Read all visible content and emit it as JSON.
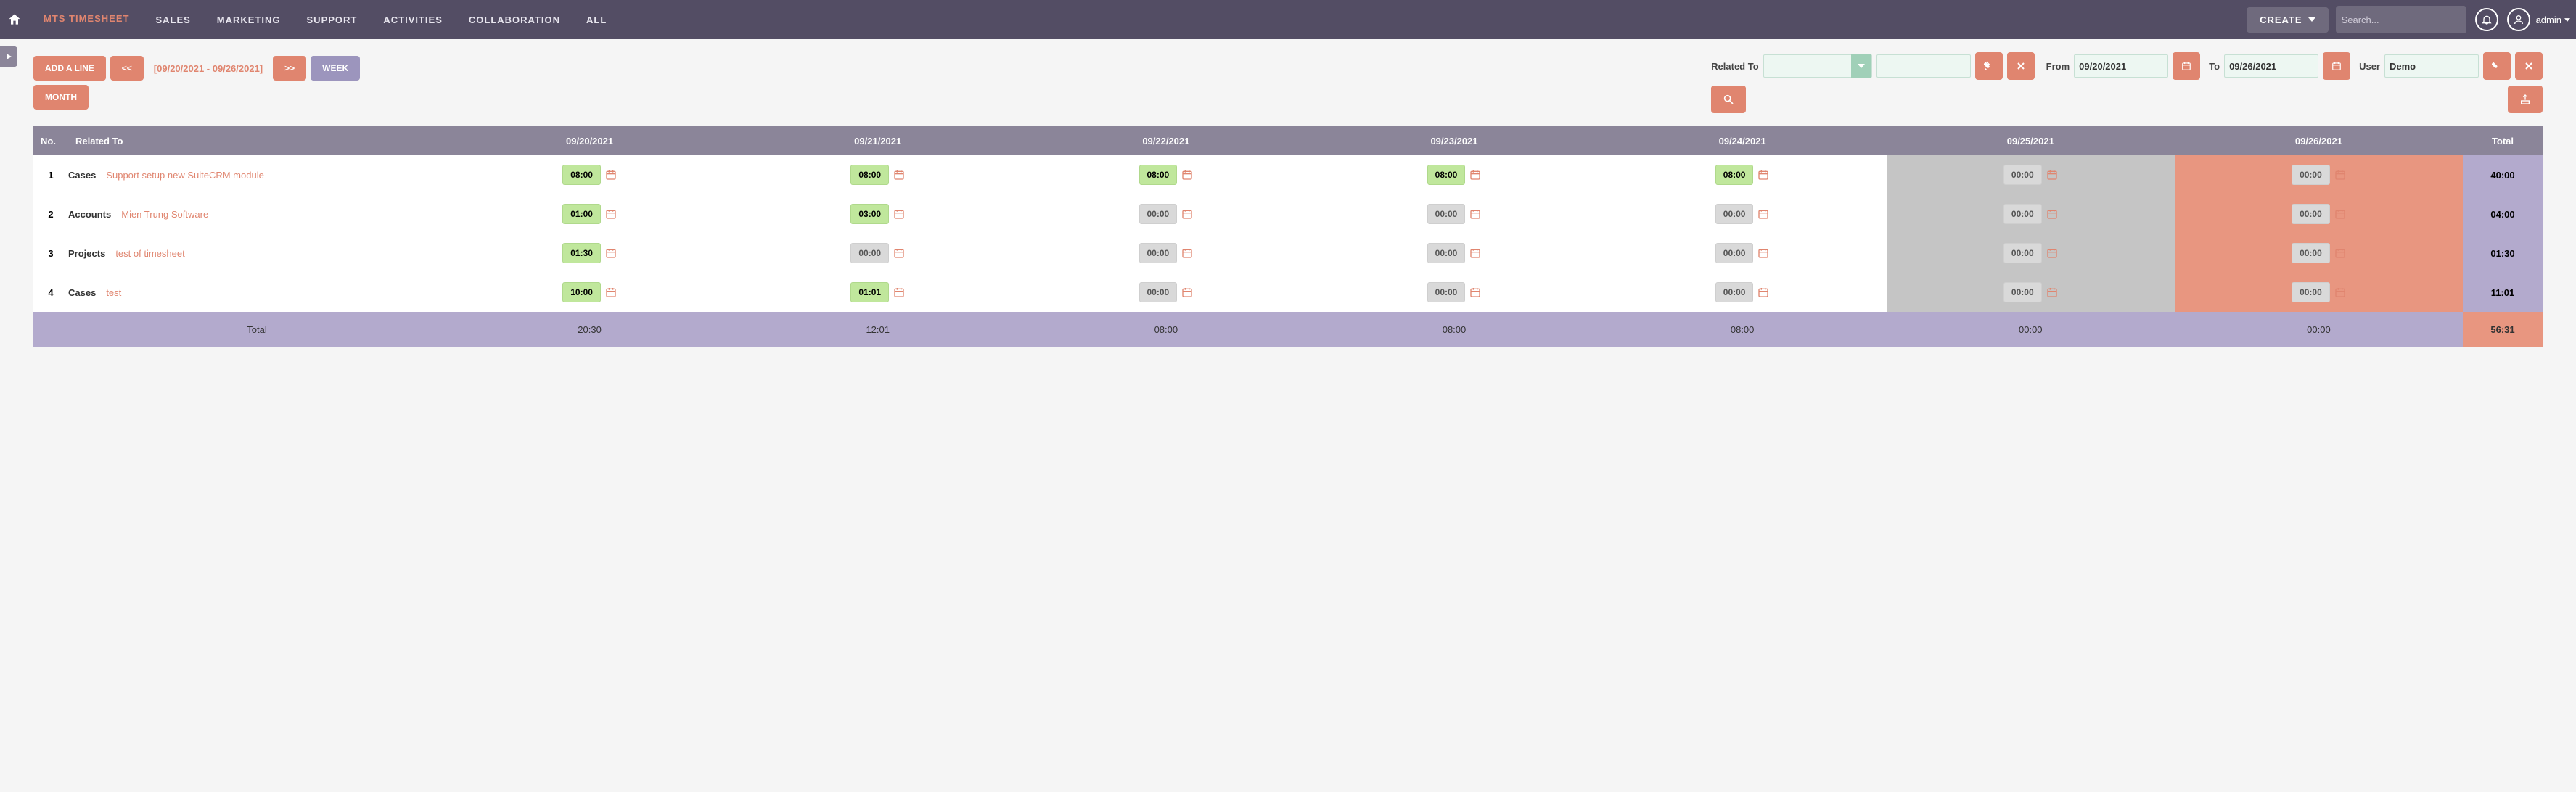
{
  "colors": {
    "topbar_bg": "#534d64",
    "coral": "#e0856f",
    "purple": "#9c95bd",
    "purple_cell": "#b3aacd",
    "grey_header": "#8b8599",
    "weekend_sat": "#c5c5c5",
    "weekend_sun": "#e89680",
    "pill_green": "#c0e79c",
    "pill_grey": "#d9d9d9",
    "mint_bg": "#edf7f2"
  },
  "nav": {
    "tabs": [
      "MTS TIMESHEET",
      "SALES",
      "MARKETING",
      "SUPPORT",
      "ACTIVITIES",
      "COLLABORATION",
      "ALL"
    ],
    "active": "MTS TIMESHEET",
    "create": "CREATE",
    "search_placeholder": "Search...",
    "user": "admin"
  },
  "toolbar": {
    "add_line": "ADD A LINE",
    "prev": "<<",
    "range": "[09/20/2021 - 09/26/2021]",
    "next": ">>",
    "week": "WEEK",
    "month": "MONTH",
    "related_to": "Related To",
    "from": "From",
    "from_val": "09/20/2021",
    "to": "To",
    "to_val": "09/26/2021",
    "user_lbl": "User",
    "user_val": "Demo"
  },
  "table": {
    "columns": {
      "no": "No.",
      "related": "Related To",
      "dates": [
        "09/20/2021",
        "09/21/2021",
        "09/22/2021",
        "09/23/2021",
        "09/24/2021",
        "09/25/2021",
        "09/26/2021"
      ],
      "total": "Total"
    },
    "rows": [
      {
        "no": "1",
        "module": "Cases",
        "link": "Support setup new SuiteCRM module",
        "cells": [
          {
            "v": "08:00",
            "c": "green"
          },
          {
            "v": "08:00",
            "c": "green"
          },
          {
            "v": "08:00",
            "c": "green"
          },
          {
            "v": "08:00",
            "c": "green"
          },
          {
            "v": "08:00",
            "c": "green"
          },
          {
            "v": "00:00",
            "c": "grey"
          },
          {
            "v": "00:00",
            "c": "grey"
          }
        ],
        "total": "40:00"
      },
      {
        "no": "2",
        "module": "Accounts",
        "link": "Mien Trung Software",
        "cells": [
          {
            "v": "01:00",
            "c": "green"
          },
          {
            "v": "03:00",
            "c": "green"
          },
          {
            "v": "00:00",
            "c": "grey"
          },
          {
            "v": "00:00",
            "c": "grey"
          },
          {
            "v": "00:00",
            "c": "grey"
          },
          {
            "v": "00:00",
            "c": "grey"
          },
          {
            "v": "00:00",
            "c": "grey"
          }
        ],
        "total": "04:00"
      },
      {
        "no": "3",
        "module": "Projects",
        "link": "test of timesheet",
        "cells": [
          {
            "v": "01:30",
            "c": "green"
          },
          {
            "v": "00:00",
            "c": "grey"
          },
          {
            "v": "00:00",
            "c": "grey"
          },
          {
            "v": "00:00",
            "c": "grey"
          },
          {
            "v": "00:00",
            "c": "grey"
          },
          {
            "v": "00:00",
            "c": "grey"
          },
          {
            "v": "00:00",
            "c": "grey"
          }
        ],
        "total": "01:30"
      },
      {
        "no": "4",
        "module": "Cases",
        "link": "test",
        "cells": [
          {
            "v": "10:00",
            "c": "green"
          },
          {
            "v": "01:01",
            "c": "green"
          },
          {
            "v": "00:00",
            "c": "grey"
          },
          {
            "v": "00:00",
            "c": "grey"
          },
          {
            "v": "00:00",
            "c": "grey"
          },
          {
            "v": "00:00",
            "c": "grey"
          },
          {
            "v": "00:00",
            "c": "grey"
          }
        ],
        "total": "11:01"
      }
    ],
    "totals": {
      "label": "Total",
      "days": [
        "20:30",
        "12:01",
        "08:00",
        "08:00",
        "08:00",
        "00:00",
        "00:00"
      ],
      "grand": "56:31"
    },
    "weekend_index": {
      "sat": 5,
      "sun": 6
    }
  }
}
